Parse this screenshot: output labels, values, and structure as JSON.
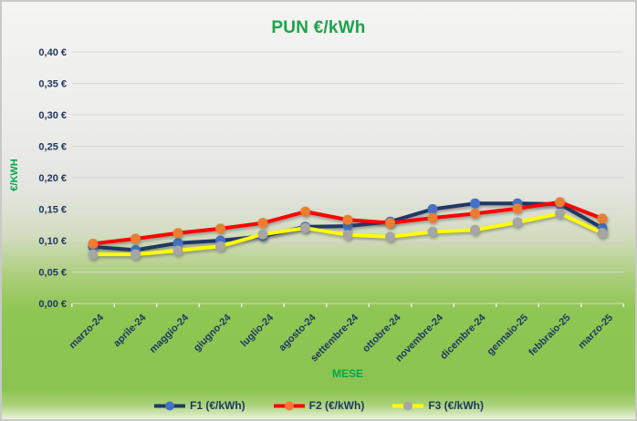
{
  "chart_data": {
    "type": "line",
    "title": "PUN €/kWh",
    "xlabel": "MESE",
    "ylabel": "€/KWH",
    "categories": [
      "marzo-24",
      "aprile-24",
      "maggio-24",
      "giugno-24",
      "luglio-24",
      "agosto-24",
      "settembre-24",
      "ottobre-24",
      "novembre-24",
      "dicembre-24",
      "gennaio-25",
      "febbraio-25",
      "marzo-25"
    ],
    "series": [
      {
        "name": "F1 (€/kWh)",
        "line_color": "#1f3864",
        "marker_color": "#4472c4",
        "values": [
          0.09,
          0.085,
          0.096,
          0.1,
          0.107,
          0.122,
          0.123,
          0.13,
          0.15,
          0.159,
          0.159,
          0.158,
          0.12
        ]
      },
      {
        "name": "F2 (€/kWh)",
        "line_color": "#ff0000",
        "marker_color": "#ed7d31",
        "values": [
          0.095,
          0.103,
          0.112,
          0.119,
          0.128,
          0.146,
          0.133,
          0.128,
          0.136,
          0.143,
          0.151,
          0.161,
          0.135
        ]
      },
      {
        "name": "F3 (€/kWh)",
        "line_color": "#ffff00",
        "marker_color": "#a6a6a6",
        "values": [
          0.078,
          0.078,
          0.084,
          0.091,
          0.11,
          0.12,
          0.109,
          0.106,
          0.114,
          0.117,
          0.129,
          0.143,
          0.112
        ]
      }
    ],
    "ylim": [
      0.0,
      0.4
    ],
    "ytick_step": 0.05,
    "ytick_labels": [
      "0,40 €",
      "0,35 €",
      "0,30 €",
      "0,25 €",
      "0,20 €",
      "0,15 €",
      "0,10 €",
      "0,05 €",
      "0,00 €"
    ],
    "grid": true,
    "legend_position": "bottom"
  },
  "colors": {
    "title_green": "#1ea24c",
    "axis_title_green": "#00a84f",
    "tick_navy": "#1f3864",
    "gridline": "#d8d8d4",
    "background_green": "#8ec653"
  }
}
